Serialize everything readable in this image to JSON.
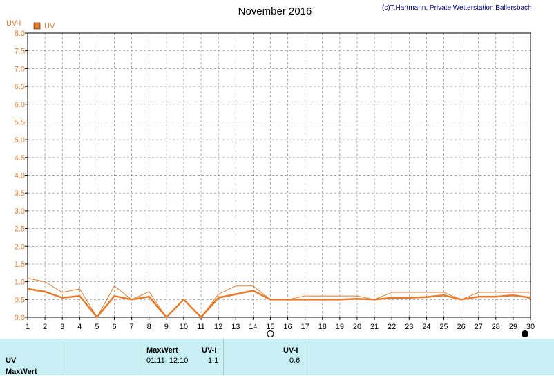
{
  "colors": {
    "series": "#e87a2a",
    "grid": "#888888",
    "footer_bg": "#c8f0f4"
  },
  "header": {
    "title": "November 2016",
    "copyright": "(c)T.Hartmann, Private Wetterstation Ballersbach",
    "y_unit": "UV-I",
    "legend_label": "UV"
  },
  "chart_data": {
    "type": "line",
    "title": "November 2016",
    "ylabel": "UV-I",
    "ylim": [
      0,
      8
    ],
    "yticks": [
      "0.0",
      "0.5",
      "1.0",
      "1.5",
      "2.0",
      "2.5",
      "3.0",
      "3.5",
      "4.0",
      "4.5",
      "5.0",
      "5.5",
      "6.0",
      "6.5",
      "7.0",
      "7.5",
      "8.0"
    ],
    "x": [
      1,
      2,
      3,
      4,
      5,
      6,
      7,
      8,
      9,
      10,
      11,
      12,
      13,
      14,
      15,
      16,
      17,
      18,
      19,
      20,
      21,
      22,
      23,
      24,
      25,
      26,
      27,
      28,
      29,
      30
    ],
    "xlim": [
      1,
      30
    ],
    "grid": true,
    "legend": "top-left",
    "moon_markers": {
      "full_moon_day": 15,
      "new_moon_day": 30
    },
    "series": [
      {
        "name": "UV",
        "role": "mean",
        "values": [
          0.8,
          0.72,
          0.55,
          0.6,
          0.0,
          0.6,
          0.5,
          0.58,
          0.0,
          0.5,
          0.0,
          0.55,
          0.65,
          0.75,
          0.5,
          0.5,
          0.5,
          0.5,
          0.5,
          0.52,
          0.5,
          0.55,
          0.55,
          0.57,
          0.62,
          0.5,
          0.58,
          0.58,
          0.62,
          0.55
        ]
      },
      {
        "role": "max",
        "values": [
          1.1,
          1.0,
          0.7,
          0.8,
          0.0,
          0.88,
          0.5,
          0.72,
          0.0,
          0.5,
          0.0,
          0.65,
          0.88,
          0.88,
          0.5,
          0.5,
          0.6,
          0.6,
          0.6,
          0.6,
          0.5,
          0.7,
          0.7,
          0.7,
          0.7,
          0.5,
          0.7,
          0.7,
          0.7,
          0.7
        ]
      }
    ]
  },
  "footer": {
    "row_label": "UV",
    "max_label": "MaxWert",
    "max_header": "MaxWert",
    "unit1": "UV-I",
    "max_datetime": "01.11.  12:10",
    "max_value": "1.1",
    "unit2": "UV-I",
    "avg_value": "0.6"
  }
}
